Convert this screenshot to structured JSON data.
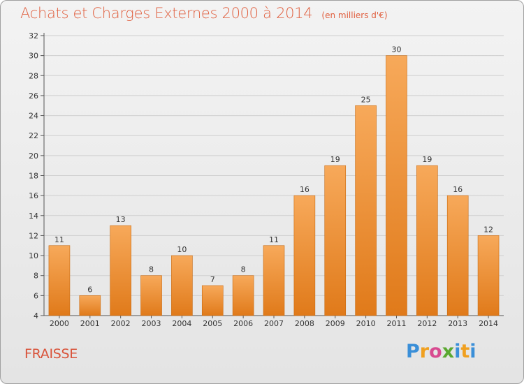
{
  "chart_data": {
    "type": "bar",
    "title": "Achats et Charges Externes 2000 à 2014",
    "subtitle": "(en milliers d'€)",
    "categories": [
      "2000",
      "2001",
      "2002",
      "2003",
      "2004",
      "2005",
      "2006",
      "2007",
      "2008",
      "2009",
      "2010",
      "2011",
      "2012",
      "2013",
      "2014"
    ],
    "values": [
      11,
      6,
      13,
      8,
      10,
      7,
      8,
      11,
      16,
      19,
      25,
      30,
      19,
      16,
      12
    ],
    "ylim": [
      4,
      32
    ],
    "yticks": [
      4,
      6,
      8,
      10,
      12,
      14,
      16,
      18,
      20,
      22,
      24,
      26,
      28,
      30,
      32
    ],
    "grid": true,
    "colors": {
      "bar_top": "#f7a95a",
      "bar_bottom": "#e07a1a",
      "bar_edge": "#c86a10"
    }
  },
  "place_label": "FRAISSE",
  "logo": {
    "letters": [
      "P",
      "r",
      "o",
      "x",
      "i",
      "t",
      "i"
    ]
  }
}
